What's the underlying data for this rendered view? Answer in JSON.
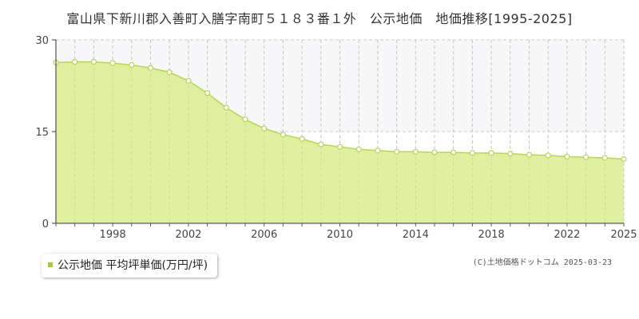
{
  "chart_data": {
    "type": "area",
    "title": "富山県下新川郡入善町入膳字南町５１８３番１外　公示地価　地価推移[1995-2025]",
    "x": [
      1995,
      1996,
      1997,
      1998,
      1999,
      2000,
      2001,
      2002,
      2003,
      2004,
      2005,
      2006,
      2007,
      2008,
      2009,
      2010,
      2011,
      2012,
      2013,
      2014,
      2015,
      2016,
      2017,
      2018,
      2019,
      2020,
      2021,
      2022,
      2023,
      2024,
      2025
    ],
    "series": [
      {
        "name": "公示地価 平均坪単価(万円/坪)",
        "values": [
          26.3,
          26.4,
          26.4,
          26.2,
          25.9,
          25.4,
          24.7,
          23.3,
          21.3,
          18.9,
          17.0,
          15.5,
          14.5,
          13.8,
          12.9,
          12.5,
          12.1,
          11.9,
          11.7,
          11.7,
          11.6,
          11.6,
          11.5,
          11.5,
          11.4,
          11.2,
          11.1,
          10.9,
          10.8,
          10.7,
          10.5
        ]
      }
    ],
    "xlim": [
      1995,
      2025
    ],
    "ylim": [
      0,
      30
    ],
    "y_ticks": [
      "0",
      "15",
      "30"
    ],
    "x_tick_labels": [
      "1998",
      "2002",
      "2006",
      "2010",
      "2014",
      "2018",
      "2022",
      "2025"
    ],
    "grid": true,
    "legend_position": "bottom-left",
    "colors": {
      "area_fill": "#dced8f",
      "line": "#b7d457",
      "marker_fill": "#ffffff",
      "upper_band": "#f7f6f9",
      "grid": "#cccccc",
      "legend_swatch": "#a9cc3a"
    }
  },
  "credit": "(C)土地価格ドットコム 2025-03-23"
}
